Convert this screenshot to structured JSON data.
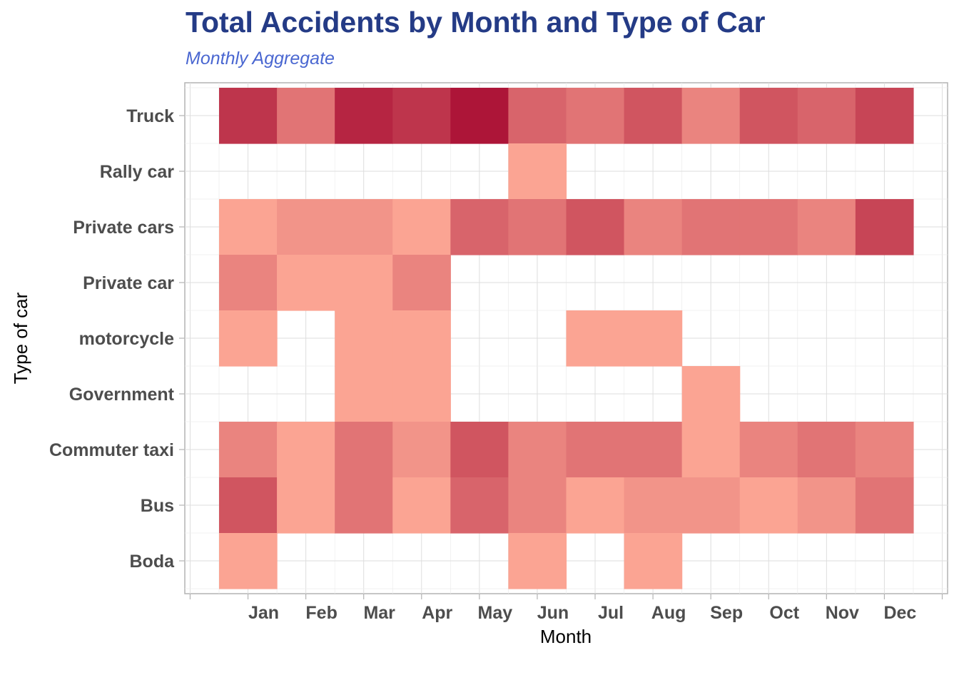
{
  "chart_data": {
    "type": "heatmap",
    "title": "Total Accidents by Month and Type of Car",
    "subtitle": "Monthly Aggregate",
    "xlabel": "Month",
    "ylabel": "Type of car",
    "x_categories": [
      "Jan",
      "Feb",
      "Mar",
      "Apr",
      "May",
      "Jun",
      "Jul",
      "Aug",
      "Sep",
      "Oct",
      "Nov",
      "Dec"
    ],
    "y_categories": [
      "Truck",
      "Rally car",
      "Private cars",
      "Private car",
      "motorcycle",
      "Government",
      "Commuter taxi",
      "Bus",
      "Boda"
    ],
    "value_scale": [
      1,
      10
    ],
    "color_low": "#fba493",
    "color_high": "#ad1538",
    "grid": true,
    "legend": "none",
    "values": [
      [
        8,
        4,
        9,
        8,
        10,
        5,
        4,
        6,
        3,
        6,
        5,
        7
      ],
      [
        null,
        null,
        null,
        null,
        null,
        1,
        null,
        null,
        null,
        null,
        null,
        null
      ],
      [
        1,
        2,
        2,
        1,
        5,
        4,
        6,
        3,
        4,
        4,
        3,
        7
      ],
      [
        3,
        1,
        1,
        3,
        null,
        null,
        null,
        null,
        null,
        null,
        null,
        null
      ],
      [
        1,
        null,
        1,
        1,
        null,
        null,
        1,
        1,
        null,
        null,
        null,
        null
      ],
      [
        null,
        null,
        1,
        1,
        null,
        null,
        null,
        null,
        1,
        null,
        null,
        null
      ],
      [
        3,
        1,
        4,
        2,
        6,
        3,
        4,
        4,
        1,
        3,
        4,
        3
      ],
      [
        6,
        1,
        4,
        1,
        5,
        3,
        1,
        2,
        2,
        1,
        2,
        4
      ],
      [
        1,
        null,
        null,
        null,
        null,
        1,
        null,
        1,
        null,
        null,
        null,
        null
      ]
    ]
  }
}
